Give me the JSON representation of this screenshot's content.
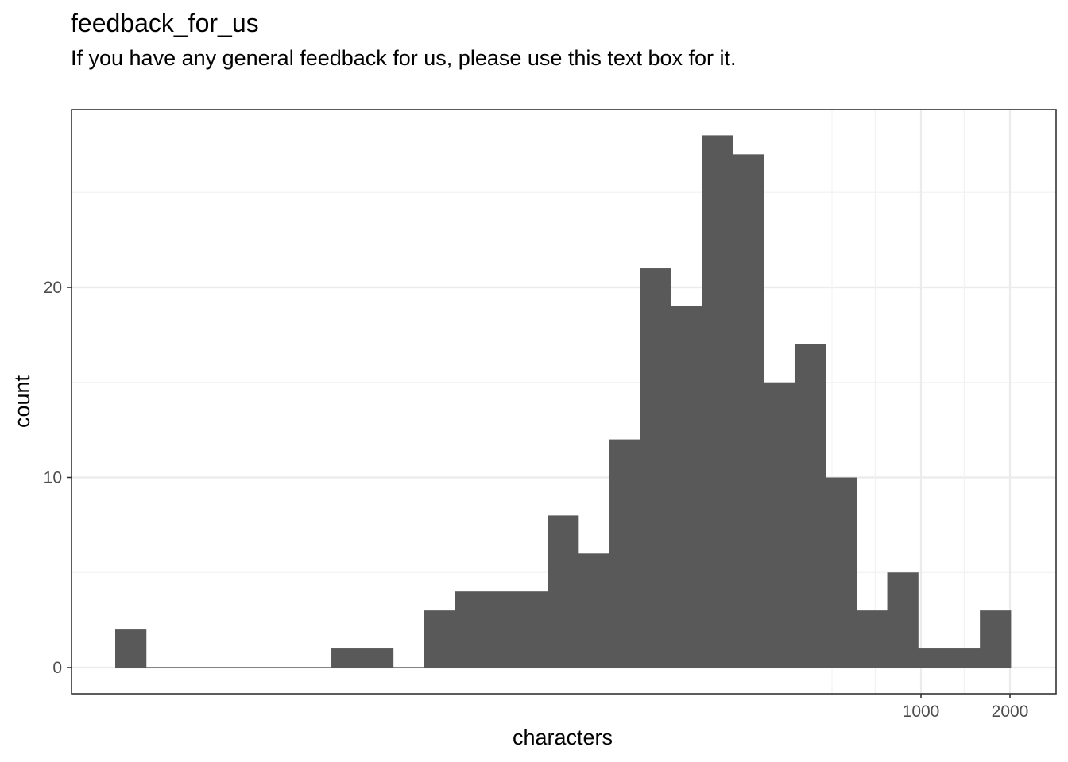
{
  "chart_data": {
    "type": "histogram",
    "title": "feedback_for_us",
    "subtitle": "If you have any general feedback for us, please use this text box for it.",
    "xlabel": "characters",
    "ylabel": "count",
    "x_scale": "log10",
    "x_tick_labels": [
      {
        "value": 1000,
        "label": "1000"
      },
      {
        "value": 2000,
        "label": "2000"
      }
    ],
    "y_tick_labels": [
      {
        "value": 0,
        "label": "0"
      },
      {
        "value": 10,
        "label": "10"
      },
      {
        "value": 20,
        "label": "20"
      }
    ],
    "ylim": [
      0,
      28
    ],
    "bins": [
      {
        "x_start": 1.0,
        "x_end": 1.27,
        "count": 2
      },
      {
        "x_start": 1.27,
        "x_end": 1.61,
        "count": 0
      },
      {
        "x_start": 1.61,
        "x_end": 2.05,
        "count": 0
      },
      {
        "x_start": 2.05,
        "x_end": 2.6,
        "count": 0
      },
      {
        "x_start": 2.6,
        "x_end": 3.3,
        "count": 0
      },
      {
        "x_start": 3.3,
        "x_end": 4.2,
        "count": 0
      },
      {
        "x_start": 4.2,
        "x_end": 5.3,
        "count": 0
      },
      {
        "x_start": 5.3,
        "x_end": 6.8,
        "count": 1
      },
      {
        "x_start": 6.8,
        "x_end": 8.6,
        "count": 1
      },
      {
        "x_start": 8.6,
        "x_end": 10.9,
        "count": 0
      },
      {
        "x_start": 10.9,
        "x_end": 13.9,
        "count": 3
      },
      {
        "x_start": 13.9,
        "x_end": 17.6,
        "count": 4
      },
      {
        "x_start": 17.6,
        "x_end": 22.4,
        "count": 4
      },
      {
        "x_start": 22.4,
        "x_end": 28.5,
        "count": 4
      },
      {
        "x_start": 28.5,
        "x_end": 36.2,
        "count": 8
      },
      {
        "x_start": 36.2,
        "x_end": 46,
        "count": 6
      },
      {
        "x_start": 46,
        "x_end": 58.5,
        "count": 12
      },
      {
        "x_start": 58.5,
        "x_end": 74.4,
        "count": 21
      },
      {
        "x_start": 74.4,
        "x_end": 94.6,
        "count": 19
      },
      {
        "x_start": 94.6,
        "x_end": 120,
        "count": 28
      },
      {
        "x_start": 120,
        "x_end": 153,
        "count": 27
      },
      {
        "x_start": 153,
        "x_end": 194,
        "count": 15
      },
      {
        "x_start": 194,
        "x_end": 247,
        "count": 17
      },
      {
        "x_start": 247,
        "x_end": 314,
        "count": 10
      },
      {
        "x_start": 314,
        "x_end": 399,
        "count": 3
      },
      {
        "x_start": 399,
        "x_end": 508,
        "count": 5
      },
      {
        "x_start": 508,
        "x_end": 645,
        "count": 1
      },
      {
        "x_start": 645,
        "x_end": 820,
        "count": 1
      },
      {
        "x_start": 820,
        "x_end": 1043,
        "count": 3
      }
    ],
    "grid": true,
    "legend": "none",
    "colors": {
      "bar": "#595959",
      "grid_major": "#ebebeb",
      "grid_minor": "#f2f2f2",
      "panel_border": "#333333",
      "tick_text": "#4d4d4d"
    }
  }
}
